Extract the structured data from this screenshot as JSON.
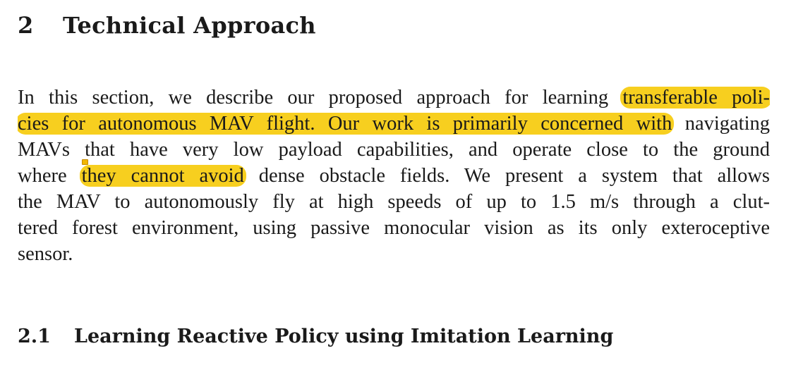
{
  "section": {
    "number": "2",
    "title": "Technical Approach"
  },
  "paragraph": {
    "line1": {
      "plain": "In this section, we describe our proposed approach for learning",
      "highlight": "transferable poli-"
    },
    "line2": {
      "highlight": "cies for autonomous MAV flight. Our work is primarily concerned with",
      "plain": "navigating"
    },
    "line3": "MAVs that have very low payload capabilities, and operate close to the ground",
    "line4": {
      "plain_before": "where",
      "highlight": "they cannot avoid",
      "plain_after": "dense obstacle fields. We present a system that allows"
    },
    "line5": "the MAV to autonomously fly at high speeds of up to 1.5 m/s through a clut-",
    "line6": "tered forest environment, using passive monocular vision as its only exteroceptive",
    "line7": "sensor."
  },
  "subsection": {
    "number": "2.1",
    "title": "Learning Reactive Policy using Imitation Learning"
  },
  "colors": {
    "highlight": "#f7cf1f",
    "text": "#1a1a1a",
    "note_marker": "#f2b705"
  }
}
